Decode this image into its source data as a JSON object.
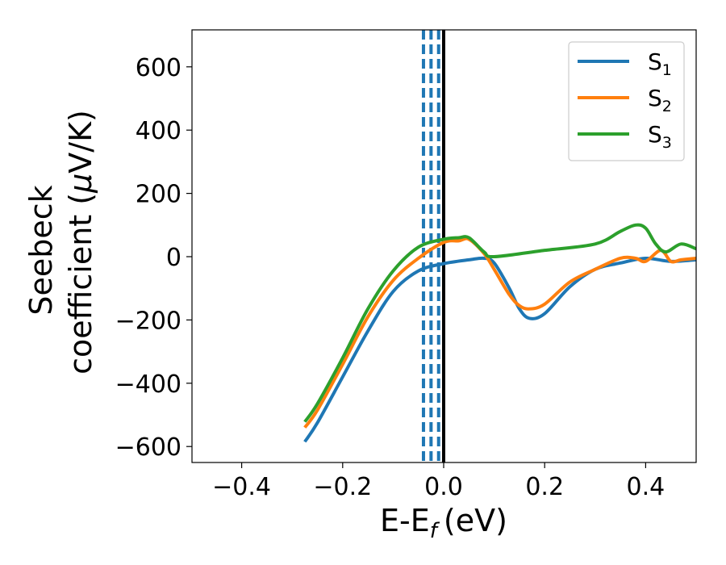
{
  "chart_data": {
    "type": "line",
    "title": "",
    "xlabel": "E-E",
    "xlabel_subscript": "f",
    "xlabel_unit": "(eV)",
    "ylabel_line1": "Seebeck",
    "ylabel_line2": "coefficient  (",
    "ylabel_mu": "μ",
    "ylabel_unit": "V/K)",
    "xlim": [
      -0.5,
      0.5
    ],
    "ylim": [
      -650,
      720
    ],
    "xticks": [
      {
        "value": -0.4,
        "label": "−0.4"
      },
      {
        "value": -0.2,
        "label": "−0.2"
      },
      {
        "value": 0.0,
        "label": "0.0"
      },
      {
        "value": 0.2,
        "label": "0.2"
      },
      {
        "value": 0.4,
        "label": "0.4"
      }
    ],
    "yticks": [
      {
        "value": -600,
        "label": "−600"
      },
      {
        "value": -400,
        "label": "−400"
      },
      {
        "value": -200,
        "label": "−200"
      },
      {
        "value": 0,
        "label": "0"
      },
      {
        "value": 200,
        "label": "200"
      },
      {
        "value": 400,
        "label": "400"
      },
      {
        "value": 600,
        "label": "600"
      }
    ],
    "legend_position": "top-right",
    "vertical_lines": [
      {
        "x": -0.04,
        "style": "dashed",
        "color": "#1f77b4"
      },
      {
        "x": -0.025,
        "style": "dashed",
        "color": "#1f77b4"
      },
      {
        "x": -0.01,
        "style": "dashed",
        "color": "#1f77b4"
      },
      {
        "x": 0.0,
        "style": "solid",
        "color": "#000000"
      }
    ],
    "series": [
      {
        "name": "S",
        "subscript": "1",
        "color": "#1f77b4",
        "x": [
          -0.275,
          -0.25,
          -0.2,
          -0.15,
          -0.1,
          -0.05,
          0.0,
          0.05,
          0.08,
          0.1,
          0.13,
          0.15,
          0.17,
          0.2,
          0.25,
          0.3,
          0.35,
          0.4,
          0.45,
          0.5
        ],
        "y": [
          -585,
          -525,
          -380,
          -235,
          -110,
          -45,
          -22,
          -10,
          -5,
          -20,
          -100,
          -165,
          -195,
          -180,
          -95,
          -40,
          -20,
          -5,
          -15,
          -10
        ]
      },
      {
        "name": "S",
        "subscript": "2",
        "color": "#ff7f0e",
        "x": [
          -0.275,
          -0.25,
          -0.2,
          -0.15,
          -0.1,
          -0.05,
          0.0,
          0.03,
          0.05,
          0.08,
          0.1,
          0.13,
          0.15,
          0.17,
          0.2,
          0.25,
          0.3,
          0.35,
          0.38,
          0.4,
          0.43,
          0.45,
          0.47,
          0.5
        ],
        "y": [
          -540,
          -485,
          -340,
          -190,
          -75,
          -5,
          45,
          50,
          55,
          10,
          -40,
          -120,
          -155,
          -165,
          -150,
          -80,
          -40,
          -5,
          -5,
          -15,
          20,
          -15,
          -10,
          -5
        ]
      },
      {
        "name": "S",
        "subscript": "3",
        "color": "#2ca02c",
        "x": [
          -0.275,
          -0.25,
          -0.2,
          -0.15,
          -0.1,
          -0.05,
          0.0,
          0.03,
          0.05,
          0.08,
          0.1,
          0.2,
          0.3,
          0.35,
          0.38,
          0.4,
          0.42,
          0.44,
          0.47,
          0.5
        ],
        "y": [
          -522,
          -465,
          -320,
          -165,
          -45,
          30,
          55,
          60,
          60,
          15,
          0,
          20,
          40,
          80,
          100,
          90,
          40,
          15,
          40,
          25
        ]
      }
    ]
  }
}
